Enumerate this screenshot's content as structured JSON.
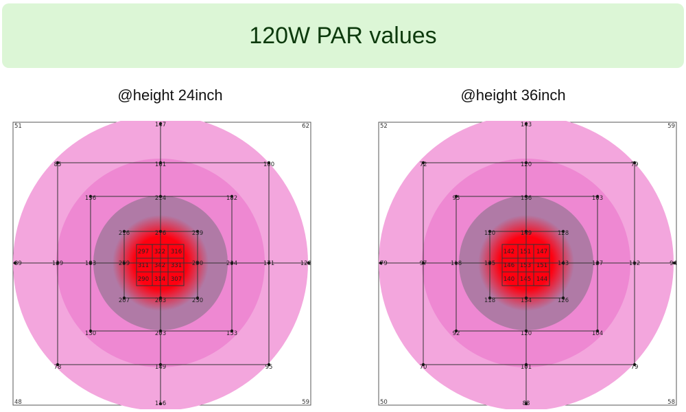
{
  "title": "120W PAR values",
  "panels": [
    {
      "heading": "@height 24inch",
      "corners": [
        "51",
        "62",
        "48",
        "59"
      ],
      "values": {
        "top_edge": "147",
        "bottom_edge": "116",
        "left_edge": "89",
        "right_edge": "128",
        "ring1": [
          "85",
          "161",
          "100",
          "129",
          "171",
          "78",
          "149",
          "95"
        ],
        "ring2": [
          "136",
          "214",
          "182",
          "183",
          "234",
          "130",
          "203",
          "153"
        ],
        "ring3": [
          "216",
          "276",
          "239",
          "259",
          "290",
          "207",
          "263",
          "230"
        ],
        "inner": [
          "297",
          "322",
          "316",
          "311",
          "342",
          "331",
          "290",
          "314",
          "307"
        ]
      }
    },
    {
      "heading": "@height 36inch",
      "corners": [
        "52",
        "59",
        "50",
        "58"
      ],
      "values": {
        "top_edge": "143",
        "bottom_edge": "88",
        "left_edge": "79",
        "right_edge": "94",
        "ring1": [
          "72",
          "120",
          "79",
          "97",
          "112",
          "70",
          "101",
          "79"
        ],
        "ring2": [
          "95",
          "136",
          "103",
          "118",
          "127",
          "92",
          "120",
          "104"
        ],
        "ring3": [
          "120",
          "149",
          "128",
          "135",
          "143",
          "118",
          "134",
          "126"
        ],
        "inner": [
          "142",
          "151",
          "147",
          "146",
          "153",
          "151",
          "140",
          "145",
          "144"
        ]
      }
    }
  ],
  "colors": {
    "banner_bg": "#dcf6d6",
    "outer_ring": "#f3a6dd",
    "middle_ring": "#ee88d2",
    "inner_disc": "#b07aa6",
    "hotspot": "#ff0010"
  }
}
